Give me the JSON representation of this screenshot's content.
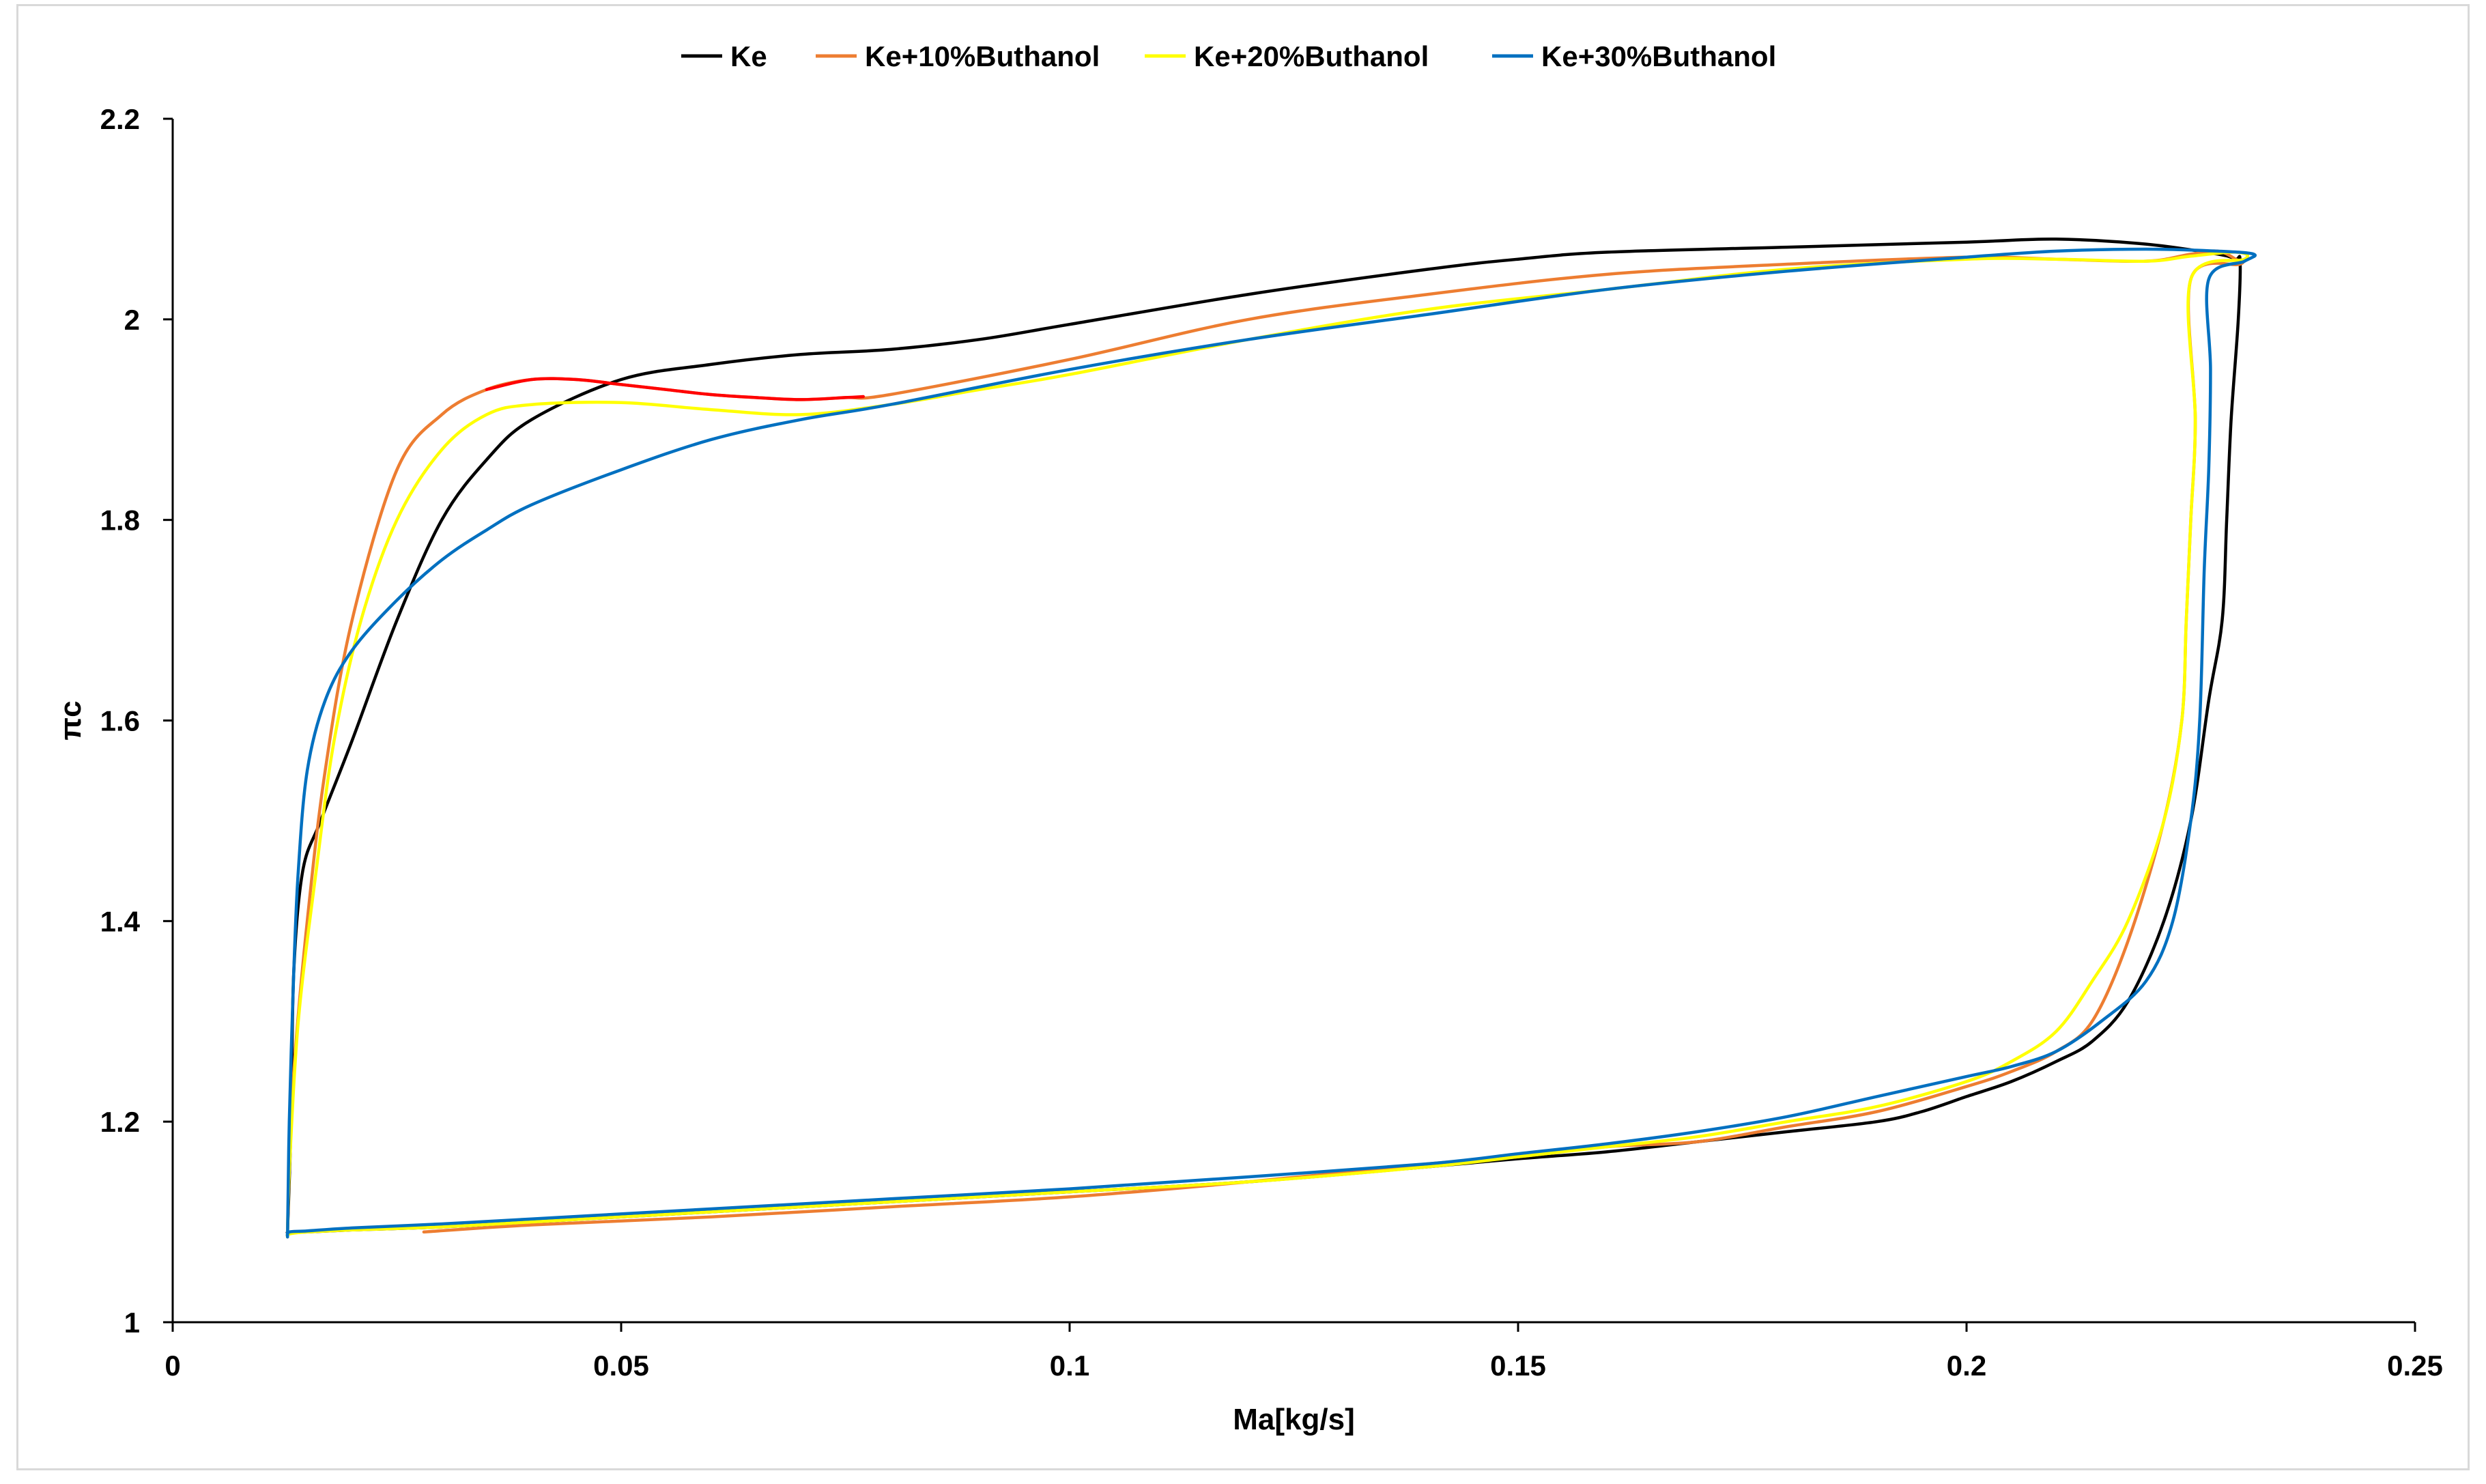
{
  "chart_data": {
    "type": "line",
    "xlabel": "Ma[kg/s]",
    "ylabel": "πc",
    "xlim": [
      0,
      0.25
    ],
    "ylim": [
      1,
      2.2
    ],
    "x_ticks": [
      0,
      0.05,
      0.1,
      0.15,
      0.2,
      0.25
    ],
    "x_tick_labels": [
      "0",
      "0.05",
      "0.1",
      "0.15",
      "0.2",
      "0.25"
    ],
    "y_ticks": [
      1,
      1.2,
      1.4,
      1.6,
      1.8,
      2,
      2.2
    ],
    "y_tick_labels": [
      "1",
      "1.2",
      "1.4",
      "1.6",
      "1.8",
      "2",
      "2.2"
    ],
    "grid": false,
    "legend_position": "top",
    "series": [
      {
        "name": "Ke",
        "color": "#000000",
        "x": [
          0.0128,
          0.0132,
          0.0135,
          0.0145,
          0.0165,
          0.02,
          0.025,
          0.03,
          0.035,
          0.04,
          0.05,
          0.06,
          0.07,
          0.08,
          0.09,
          0.1,
          0.12,
          0.14,
          0.15,
          0.16,
          0.18,
          0.2,
          0.21,
          0.22,
          0.228,
          0.23,
          0.2305,
          0.2303,
          0.2295,
          0.229,
          0.2285,
          0.227,
          0.225,
          0.222,
          0.218,
          0.214,
          0.21,
          0.205,
          0.2,
          0.195,
          0.19,
          0.18,
          0.17,
          0.16,
          0.15,
          0.14,
          0.12,
          0.1,
          0.08,
          0.06,
          0.04,
          0.03,
          0.02,
          0.015,
          0.013,
          0.0128
        ],
        "y": [
          1.09,
          1.2,
          1.35,
          1.45,
          1.5,
          1.58,
          1.7,
          1.8,
          1.86,
          1.9,
          1.94,
          1.955,
          1.965,
          1.97,
          1.98,
          1.995,
          2.025,
          2.05,
          2.06,
          2.067,
          2.072,
          2.077,
          2.08,
          2.075,
          2.065,
          2.06,
          2.058,
          2.0,
          1.9,
          1.8,
          1.7,
          1.62,
          1.5,
          1.4,
          1.32,
          1.28,
          1.26,
          1.24,
          1.225,
          1.21,
          1.2,
          1.19,
          1.18,
          1.17,
          1.163,
          1.155,
          1.14,
          1.13,
          1.12,
          1.11,
          1.1,
          1.095,
          1.092,
          1.09,
          1.089,
          1.09
        ]
      },
      {
        "name": "Ke+10%Buthanol",
        "color": "#ed7d31",
        "x": [
          0.0128,
          0.013,
          0.0135,
          0.015,
          0.017,
          0.02,
          0.025,
          0.03,
          0.035,
          0.04,
          0.045,
          0.05,
          0.055,
          0.06,
          0.065,
          0.07,
          0.075,
          0.08,
          0.1,
          0.12,
          0.14,
          0.16,
          0.18,
          0.2,
          0.21,
          0.22,
          0.225,
          0.228,
          0.23,
          0.2305,
          0.225,
          0.2255,
          0.225,
          0.2245,
          0.224,
          0.222,
          0.218,
          0.214,
          0.21,
          0.205,
          0.2,
          0.19,
          0.18,
          0.17,
          0.16,
          0.15,
          0.14,
          0.12,
          0.1,
          0.08,
          0.06,
          0.04,
          0.028
        ],
        "y": [
          1.09,
          1.15,
          1.25,
          1.4,
          1.55,
          1.7,
          1.85,
          1.905,
          1.93,
          1.94,
          1.94,
          1.935,
          1.93,
          1.925,
          1.922,
          1.92,
          1.922,
          1.925,
          1.96,
          2.0,
          2.025,
          2.045,
          2.055,
          2.062,
          2.06,
          2.058,
          2.065,
          2.068,
          2.06,
          2.055,
          2.04,
          1.9,
          1.8,
          1.7,
          1.6,
          1.5,
          1.38,
          1.3,
          1.27,
          1.25,
          1.235,
          1.21,
          1.195,
          1.18,
          1.175,
          1.165,
          1.158,
          1.14,
          1.125,
          1.115,
          1.105,
          1.097,
          1.09
        ]
      },
      {
        "name": "Ke+20%Buthanol",
        "color": "#ffff00",
        "x": [
          0.0128,
          0.013,
          0.014,
          0.016,
          0.018,
          0.021,
          0.025,
          0.03,
          0.035,
          0.04,
          0.05,
          0.06,
          0.07,
          0.08,
          0.09,
          0.1,
          0.12,
          0.14,
          0.16,
          0.18,
          0.2,
          0.21,
          0.22,
          0.225,
          0.23,
          0.231,
          0.225,
          0.2255,
          0.225,
          0.2245,
          0.224,
          0.222,
          0.218,
          0.214,
          0.21,
          0.205,
          0.2,
          0.19,
          0.18,
          0.17,
          0.16,
          0.15,
          0.14,
          0.12,
          0.1,
          0.08,
          0.06,
          0.04,
          0.03,
          0.02,
          0.015,
          0.013,
          0.0128
        ],
        "y": [
          1.085,
          1.15,
          1.3,
          1.45,
          1.58,
          1.7,
          1.8,
          1.87,
          1.905,
          1.915,
          1.917,
          1.91,
          1.905,
          1.915,
          1.93,
          1.945,
          1.98,
          2.01,
          2.03,
          2.05,
          2.06,
          2.06,
          2.058,
          2.063,
          2.067,
          2.06,
          2.04,
          1.9,
          1.8,
          1.7,
          1.6,
          1.5,
          1.4,
          1.34,
          1.29,
          1.26,
          1.24,
          1.215,
          1.2,
          1.185,
          1.175,
          1.165,
          1.155,
          1.14,
          1.13,
          1.12,
          1.11,
          1.1,
          1.095,
          1.092,
          1.09,
          1.088,
          1.085
        ]
      },
      {
        "name": "Ke+30%Buthanol",
        "color": "#0070c0",
        "x": [
          0.0128,
          0.013,
          0.0135,
          0.014,
          0.015,
          0.017,
          0.02,
          0.025,
          0.03,
          0.035,
          0.04,
          0.05,
          0.06,
          0.07,
          0.08,
          0.1,
          0.12,
          0.14,
          0.16,
          0.18,
          0.2,
          0.21,
          0.22,
          0.228,
          0.232,
          0.231,
          0.227,
          0.2272,
          0.227,
          0.2265,
          0.226,
          0.225,
          0.223,
          0.22,
          0.215,
          0.21,
          0.205,
          0.2,
          0.19,
          0.18,
          0.17,
          0.16,
          0.15,
          0.14,
          0.12,
          0.1,
          0.08,
          0.06,
          0.04,
          0.03,
          0.02,
          0.015,
          0.013,
          0.0128
        ],
        "y": [
          1.085,
          1.2,
          1.35,
          1.45,
          1.55,
          1.62,
          1.67,
          1.72,
          1.76,
          1.79,
          1.815,
          1.85,
          1.88,
          1.9,
          1.915,
          1.95,
          1.98,
          2.005,
          2.03,
          2.048,
          2.062,
          2.068,
          2.07,
          2.068,
          2.065,
          2.058,
          2.04,
          1.95,
          1.85,
          1.75,
          1.6,
          1.5,
          1.4,
          1.34,
          1.3,
          1.27,
          1.255,
          1.245,
          1.225,
          1.205,
          1.19,
          1.178,
          1.168,
          1.158,
          1.145,
          1.133,
          1.123,
          1.113,
          1.103,
          1.098,
          1.094,
          1.091,
          1.09,
          1.085
        ]
      }
    ],
    "annotation_segment": {
      "color": "#ff0000",
      "x": [
        0.035,
        0.04,
        0.045,
        0.05,
        0.055,
        0.06,
        0.065,
        0.07,
        0.075,
        0.077
      ],
      "y": [
        1.93,
        1.94,
        1.94,
        1.935,
        1.93,
        1.925,
        1.922,
        1.92,
        1.922,
        1.923
      ]
    }
  }
}
